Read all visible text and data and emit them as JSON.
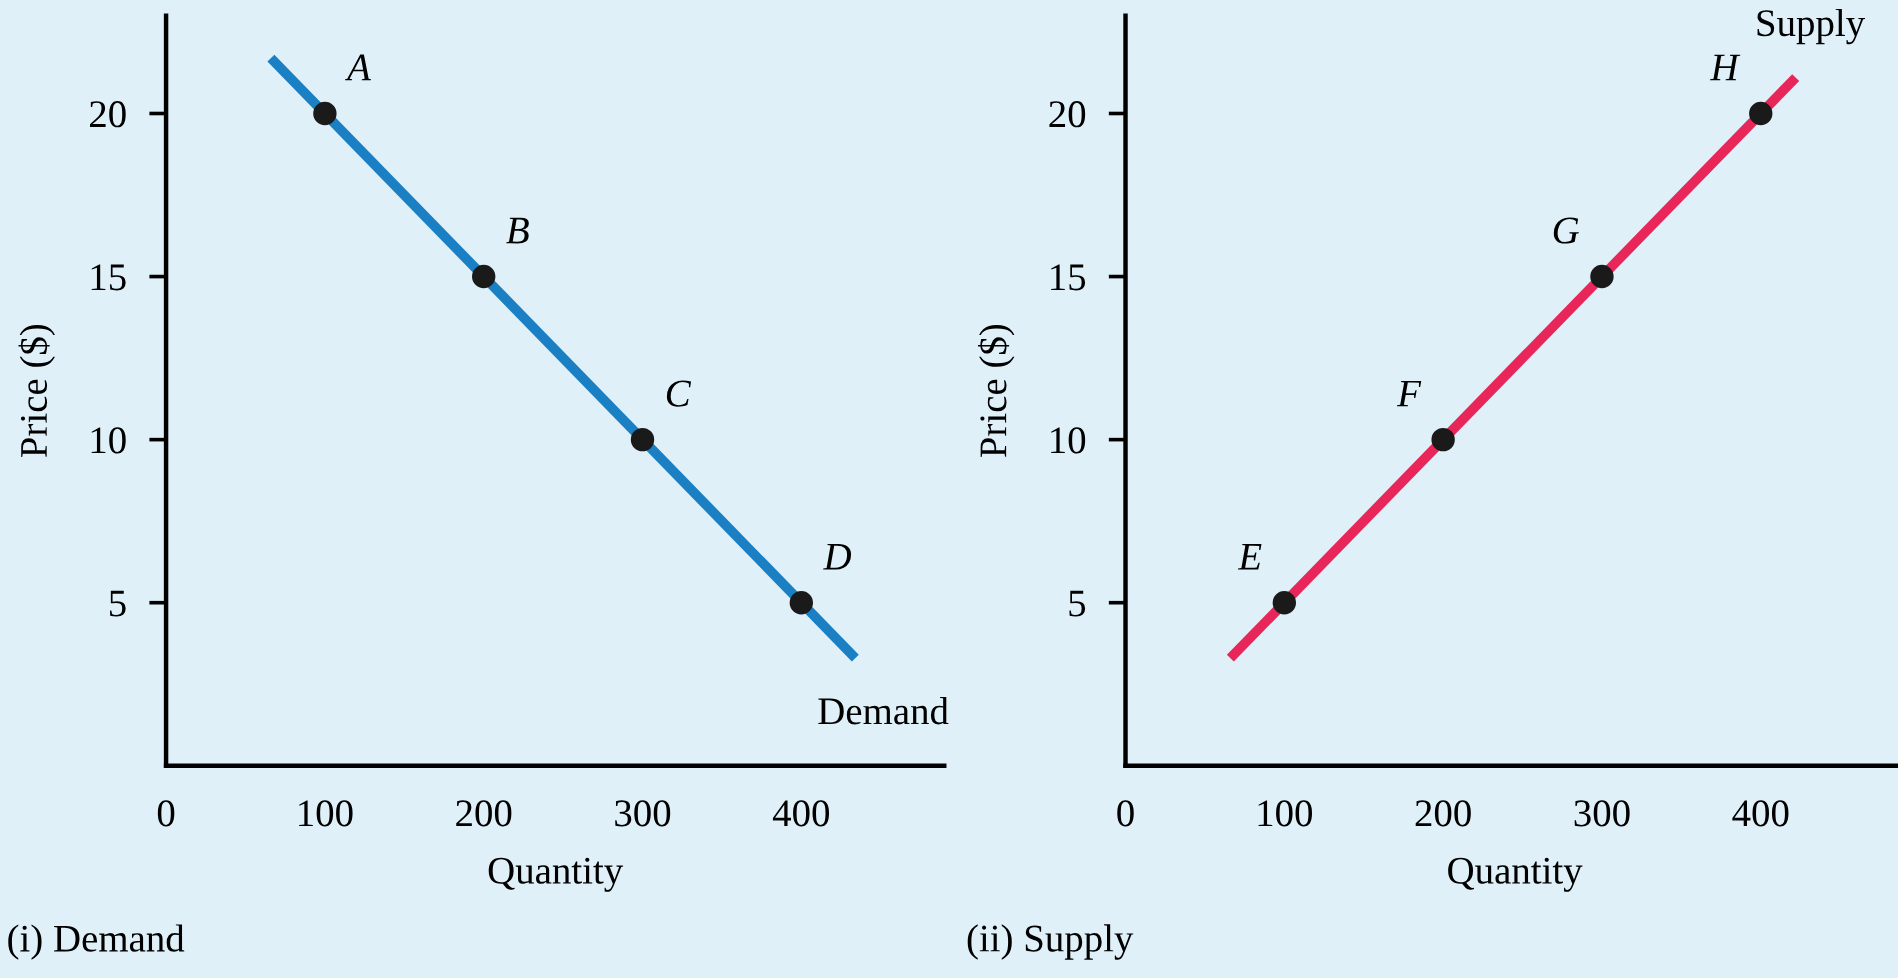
{
  "chart_data": [
    {
      "type": "line",
      "title": "(i) Demand",
      "xlabel": "Quantity",
      "ylabel": "Price ($)",
      "xlim": [
        0,
        490
      ],
      "ylim": [
        0,
        23
      ],
      "xticks": [
        0,
        100,
        200,
        300,
        400
      ],
      "yticks": [
        5,
        10,
        15,
        20
      ],
      "grid": false,
      "legend": false,
      "series": [
        {
          "name": "Demand",
          "type": "line",
          "color": "#1b7fc4",
          "x": [
            66,
            434
          ],
          "values": [
            21.7,
            3.3
          ],
          "marker": "none"
        },
        {
          "type": "scatter",
          "color": "#1a1a1a",
          "x": [
            100,
            200,
            300,
            400
          ],
          "values": [
            20,
            15,
            10,
            5
          ],
          "marker": "circle"
        }
      ],
      "annotations": [
        {
          "text": "A",
          "x": 100,
          "y": 20
        },
        {
          "text": "B",
          "x": 200,
          "y": 15
        },
        {
          "text": "C",
          "x": 300,
          "y": 10
        },
        {
          "text": "D",
          "x": 400,
          "y": 5
        }
      ]
    },
    {
      "type": "line",
      "title": "(ii) Supply",
      "xlabel": "Quantity",
      "ylabel": "Price ($)",
      "xlim": [
        0,
        490
      ],
      "ylim": [
        0,
        23
      ],
      "xticks": [
        0,
        100,
        200,
        300,
        400
      ],
      "yticks": [
        5,
        10,
        15,
        20
      ],
      "grid": false,
      "legend": false,
      "series": [
        {
          "name": "Supply",
          "type": "line",
          "color": "#e8265a",
          "x": [
            66,
            422
          ],
          "values": [
            3.3,
            21.1
          ],
          "marker": "none"
        },
        {
          "type": "scatter",
          "color": "#1a1a1a",
          "x": [
            100,
            200,
            300,
            400
          ],
          "values": [
            5,
            10,
            15,
            20
          ],
          "marker": "circle"
        }
      ],
      "annotations": [
        {
          "text": "E",
          "x": 100,
          "y": 5
        },
        {
          "text": "F",
          "x": 200,
          "y": 10
        },
        {
          "text": "G",
          "x": 300,
          "y": 15
        },
        {
          "text": "H",
          "x": 400,
          "y": 20
        }
      ]
    }
  ]
}
